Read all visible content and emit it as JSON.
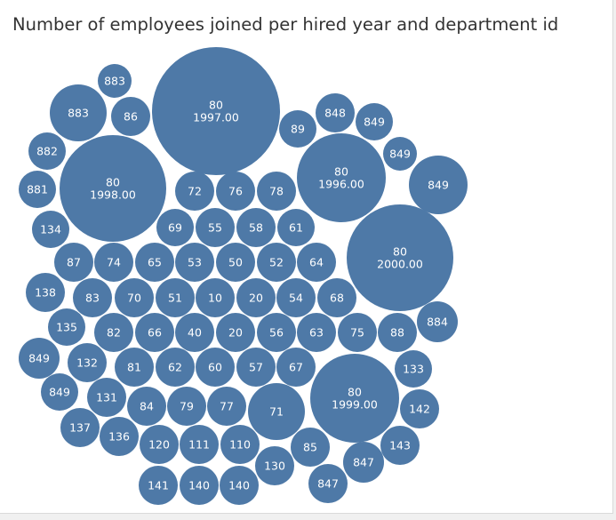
{
  "title": "Number of employees joined per hired year and department id",
  "chart_data": {
    "type": "bubble",
    "title": "Number of employees joined per hired year and department id",
    "size_measure": "number of employees joined",
    "color": "#4e79a7",
    "label_color": "#ffffff",
    "bubbles": [
      {
        "department_id": "883"
      },
      {
        "department_id": "883"
      },
      {
        "department_id": "86"
      },
      {
        "department_id": "80",
        "hired_year": "1997.00"
      },
      {
        "department_id": "89"
      },
      {
        "department_id": "848"
      },
      {
        "department_id": "849"
      },
      {
        "department_id": "882"
      },
      {
        "department_id": "80",
        "hired_year": "1998.00"
      },
      {
        "department_id": "849"
      },
      {
        "department_id": "80",
        "hired_year": "1996.00"
      },
      {
        "department_id": "881"
      },
      {
        "department_id": "72"
      },
      {
        "department_id": "76"
      },
      {
        "department_id": "78"
      },
      {
        "department_id": "849"
      },
      {
        "department_id": "134"
      },
      {
        "department_id": "69"
      },
      {
        "department_id": "55"
      },
      {
        "department_id": "58"
      },
      {
        "department_id": "61"
      },
      {
        "department_id": "80",
        "hired_year": "2000.00"
      },
      {
        "department_id": "87"
      },
      {
        "department_id": "74"
      },
      {
        "department_id": "65"
      },
      {
        "department_id": "53"
      },
      {
        "department_id": "50"
      },
      {
        "department_id": "52"
      },
      {
        "department_id": "64"
      },
      {
        "department_id": "138"
      },
      {
        "department_id": "83"
      },
      {
        "department_id": "70"
      },
      {
        "department_id": "51"
      },
      {
        "department_id": "10"
      },
      {
        "department_id": "20"
      },
      {
        "department_id": "54"
      },
      {
        "department_id": "68"
      },
      {
        "department_id": "884"
      },
      {
        "department_id": "135"
      },
      {
        "department_id": "82"
      },
      {
        "department_id": "66"
      },
      {
        "department_id": "40"
      },
      {
        "department_id": "20"
      },
      {
        "department_id": "56"
      },
      {
        "department_id": "63"
      },
      {
        "department_id": "75"
      },
      {
        "department_id": "88"
      },
      {
        "department_id": "849"
      },
      {
        "department_id": "132"
      },
      {
        "department_id": "81"
      },
      {
        "department_id": "62"
      },
      {
        "department_id": "60"
      },
      {
        "department_id": "57"
      },
      {
        "department_id": "67"
      },
      {
        "department_id": "80",
        "hired_year": "1999.00"
      },
      {
        "department_id": "133"
      },
      {
        "department_id": "849"
      },
      {
        "department_id": "131"
      },
      {
        "department_id": "84"
      },
      {
        "department_id": "79"
      },
      {
        "department_id": "77"
      },
      {
        "department_id": "71"
      },
      {
        "department_id": "142"
      },
      {
        "department_id": "137"
      },
      {
        "department_id": "136"
      },
      {
        "department_id": "120"
      },
      {
        "department_id": "111"
      },
      {
        "department_id": "110"
      },
      {
        "department_id": "85"
      },
      {
        "department_id": "143"
      },
      {
        "department_id": "130"
      },
      {
        "department_id": "847"
      },
      {
        "department_id": "847"
      },
      {
        "department_id": "141"
      },
      {
        "department_id": "140"
      },
      {
        "department_id": "140"
      }
    ]
  }
}
